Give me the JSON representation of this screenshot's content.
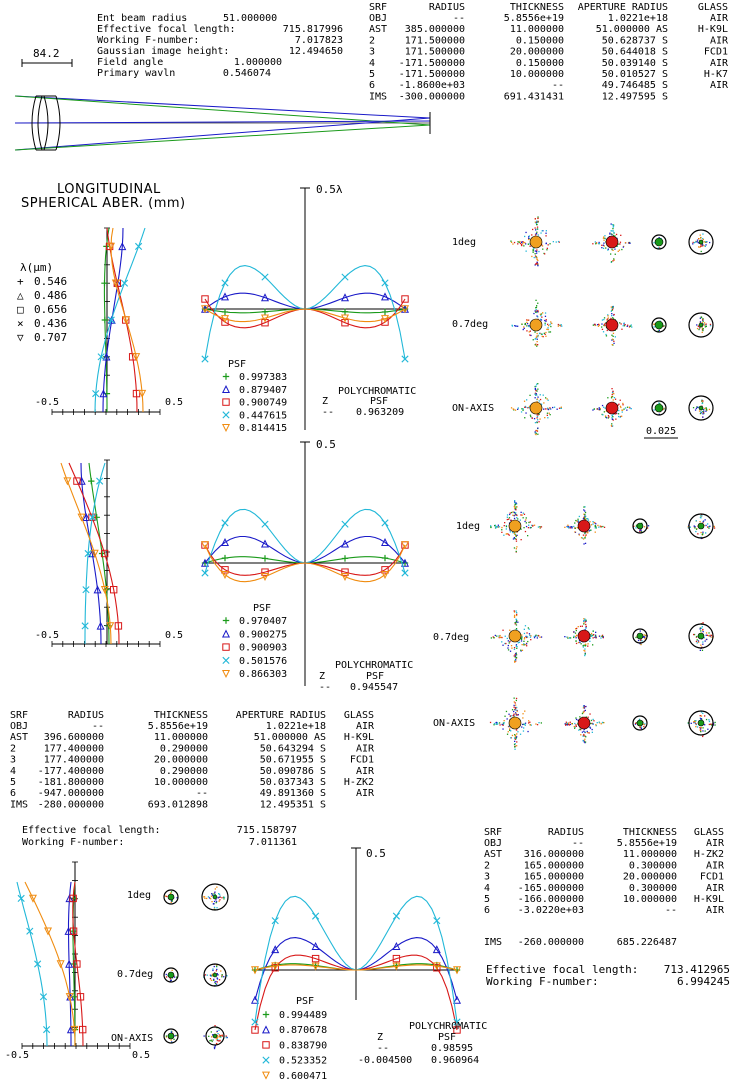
{
  "system1": {
    "scale_label": "84.2",
    "info": [
      {
        "label": "Ent beam radius",
        "value": "51.000000"
      },
      {
        "label": "Effective focal length:",
        "value": "715.817996"
      },
      {
        "label": "Working F-number:",
        "value": "7.017823"
      },
      {
        "label": "Gaussian image height:",
        "value": "12.494650"
      },
      {
        "label": "Field angle",
        "value": "1.000000"
      },
      {
        "label": "Primary wavln",
        "value": "0.546074"
      }
    ],
    "table": {
      "headers": [
        "SRF",
        "RADIUS",
        "THICKNESS",
        "APERTURE RADIUS",
        "GLASS"
      ],
      "rows": [
        [
          "OBJ",
          "--",
          "5.8556e+19",
          "1.0221e+18",
          "AIR"
        ],
        [
          "AST",
          "385.000000",
          "11.000000",
          "51.000000 AS",
          "H-K9L"
        ],
        [
          "2",
          "171.500000",
          "0.150000",
          "50.628737 S",
          "AIR"
        ],
        [
          "3",
          "171.500000",
          "20.000000",
          "50.644018 S",
          "FCD1"
        ],
        [
          "4",
          "-171.500000",
          "0.150000",
          "50.039140 S",
          "AIR"
        ],
        [
          "5",
          "-171.500000",
          "10.000000",
          "50.010527 S",
          "H-K7"
        ],
        [
          "6",
          "-1.8600e+03",
          "--",
          "49.746485 S",
          "AIR"
        ],
        [
          "IMS",
          "-300.000000",
          "691.431431",
          "12.497595 S",
          ""
        ]
      ]
    }
  },
  "longitudinal": {
    "title_line1": "LONGITUDINAL",
    "title_line2": "SPHERICAL ABER. (mm)",
    "axis_min": "-0.5",
    "axis_max": "0.5"
  },
  "legend": {
    "title": "λ(μm)",
    "items": [
      {
        "marker": "+",
        "value": "0.546",
        "color": "#1a9a1a"
      },
      {
        "marker": "△",
        "value": "0.486",
        "color": "#1a1ac8"
      },
      {
        "marker": "□",
        "value": "0.656",
        "color": "#d81818"
      },
      {
        "marker": "×",
        "value": "0.436",
        "color": "#22b8d8"
      },
      {
        "marker": "▽",
        "value": "0.707",
        "color": "#f08c10"
      }
    ]
  },
  "opd1": {
    "scale_label": "0.5λ",
    "psf_title": "PSF",
    "psf_values": [
      "0.997383",
      "0.879407",
      "0.900749",
      "0.447615",
      "0.814415"
    ],
    "poly_label": "POLYCHROMATIC",
    "z_header": "Z",
    "psf_header": "PSF",
    "rows": [
      [
        "--",
        "0.963209"
      ]
    ]
  },
  "opd2": {
    "scale_label": "0.5",
    "psf_title": "PSF",
    "psf_values": [
      "0.970407",
      "0.900275",
      "0.900903",
      "0.501576",
      "0.866303"
    ],
    "poly_label": "POLYCHROMATIC",
    "z_header": "Z",
    "psf_header": "PSF",
    "rows": [
      [
        "--",
        "0.945547"
      ]
    ]
  },
  "opd3": {
    "scale_label": "0.5",
    "psf_title": "PSF",
    "psf_values": [
      "0.994489",
      "0.870678",
      "0.838790",
      "0.523352",
      "0.600471"
    ],
    "poly_label": "POLYCHROMATIC",
    "z_header": "Z",
    "psf_header": "PSF",
    "rows": [
      [
        "--",
        "0.98595"
      ],
      [
        "-0.004500",
        "0.960964"
      ]
    ]
  },
  "spots1": {
    "labels": [
      "1deg",
      "0.7deg",
      "ON-AXIS"
    ],
    "scale_label": "0.025"
  },
  "spots2": {
    "labels": [
      "1deg",
      "0.7deg",
      "ON-AXIS"
    ]
  },
  "spots3": {
    "labels": [
      "1deg",
      "0.7deg",
      "ON-AXIS"
    ]
  },
  "system2": {
    "table": {
      "headers": [
        "SRF",
        "RADIUS",
        "THICKNESS",
        "APERTURE RADIUS",
        "GLASS"
      ],
      "rows": [
        [
          "OBJ",
          "--",
          "5.8556e+19",
          "1.0221e+18",
          "AIR"
        ],
        [
          "AST",
          "396.600000",
          "11.000000",
          "51.000000 AS",
          "H-K9L"
        ],
        [
          "2",
          "177.400000",
          "0.290000",
          "50.643294 S",
          "AIR"
        ],
        [
          "3",
          "177.400000",
          "20.000000",
          "50.671955 S",
          "FCD1"
        ],
        [
          "4",
          "-177.400000",
          "0.290000",
          "50.090786 S",
          "AIR"
        ],
        [
          "5",
          "-181.800000",
          "10.000000",
          "50.037343 S",
          "H-ZK2"
        ],
        [
          "6",
          "-947.000000",
          "--",
          "49.891360 S",
          "AIR"
        ],
        [
          "IMS",
          "-280.000000",
          "693.012898",
          "12.495351 S",
          ""
        ]
      ]
    },
    "efl_label": "Effective focal length:",
    "efl_value": "715.158797",
    "fno_label": "Working F-number:",
    "fno_value": "7.011361"
  },
  "system3": {
    "table": {
      "headers": [
        "SRF",
        "RADIUS",
        "THICKNESS",
        "GLASS"
      ],
      "rows": [
        [
          "OBJ",
          "--",
          "5.8556e+19",
          "AIR"
        ],
        [
          "AST",
          "316.000000",
          "11.000000",
          "H-ZK2"
        ],
        [
          "2",
          "165.000000",
          "0.300000",
          "AIR"
        ],
        [
          "3",
          "165.000000",
          "20.000000",
          "FCD1"
        ],
        [
          "4",
          "-165.000000",
          "0.300000",
          "AIR"
        ],
        [
          "5",
          "-166.000000",
          "10.000000",
          "H-K9L"
        ],
        [
          "6",
          "-3.0220e+03",
          "--",
          "AIR"
        ]
      ],
      "ims_row": [
        "IMS",
        "-260.000000",
        "685.226487"
      ]
    },
    "efl_label": "Effective focal length:",
    "efl_value": "713.412965",
    "fno_label": "Working F-number:",
    "fno_value": "6.994245"
  }
}
